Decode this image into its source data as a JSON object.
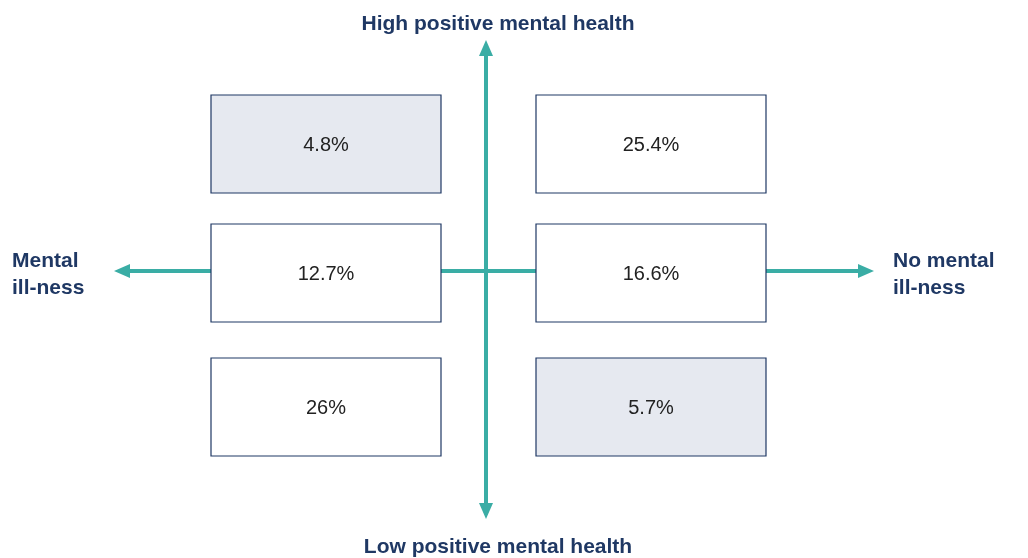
{
  "chart_data": {
    "type": "heatmap",
    "categories": [
      "Mental\nill-ness",
      "No mental\nill-ness"
    ],
    "y_categories": [
      null,
      null,
      null
    ],
    "annotations": [
      "High positive mental health",
      "Low positive mental health"
    ],
    "cells": [
      [
        4.8,
        25.4
      ],
      [
        12.7,
        16.6
      ],
      [
        26,
        5.7
      ]
    ],
    "cell_labels": [
      [
        "4.8%",
        "25.4%"
      ],
      [
        "12.7%",
        "16.6%"
      ],
      [
        "26%",
        "5.7%"
      ]
    ],
    "colors": [
      "#e6e9f0",
      "#ffffff",
      "#ffffff",
      "#ffffff",
      "#ffffff",
      "#e6e9f0"
    ]
  }
}
